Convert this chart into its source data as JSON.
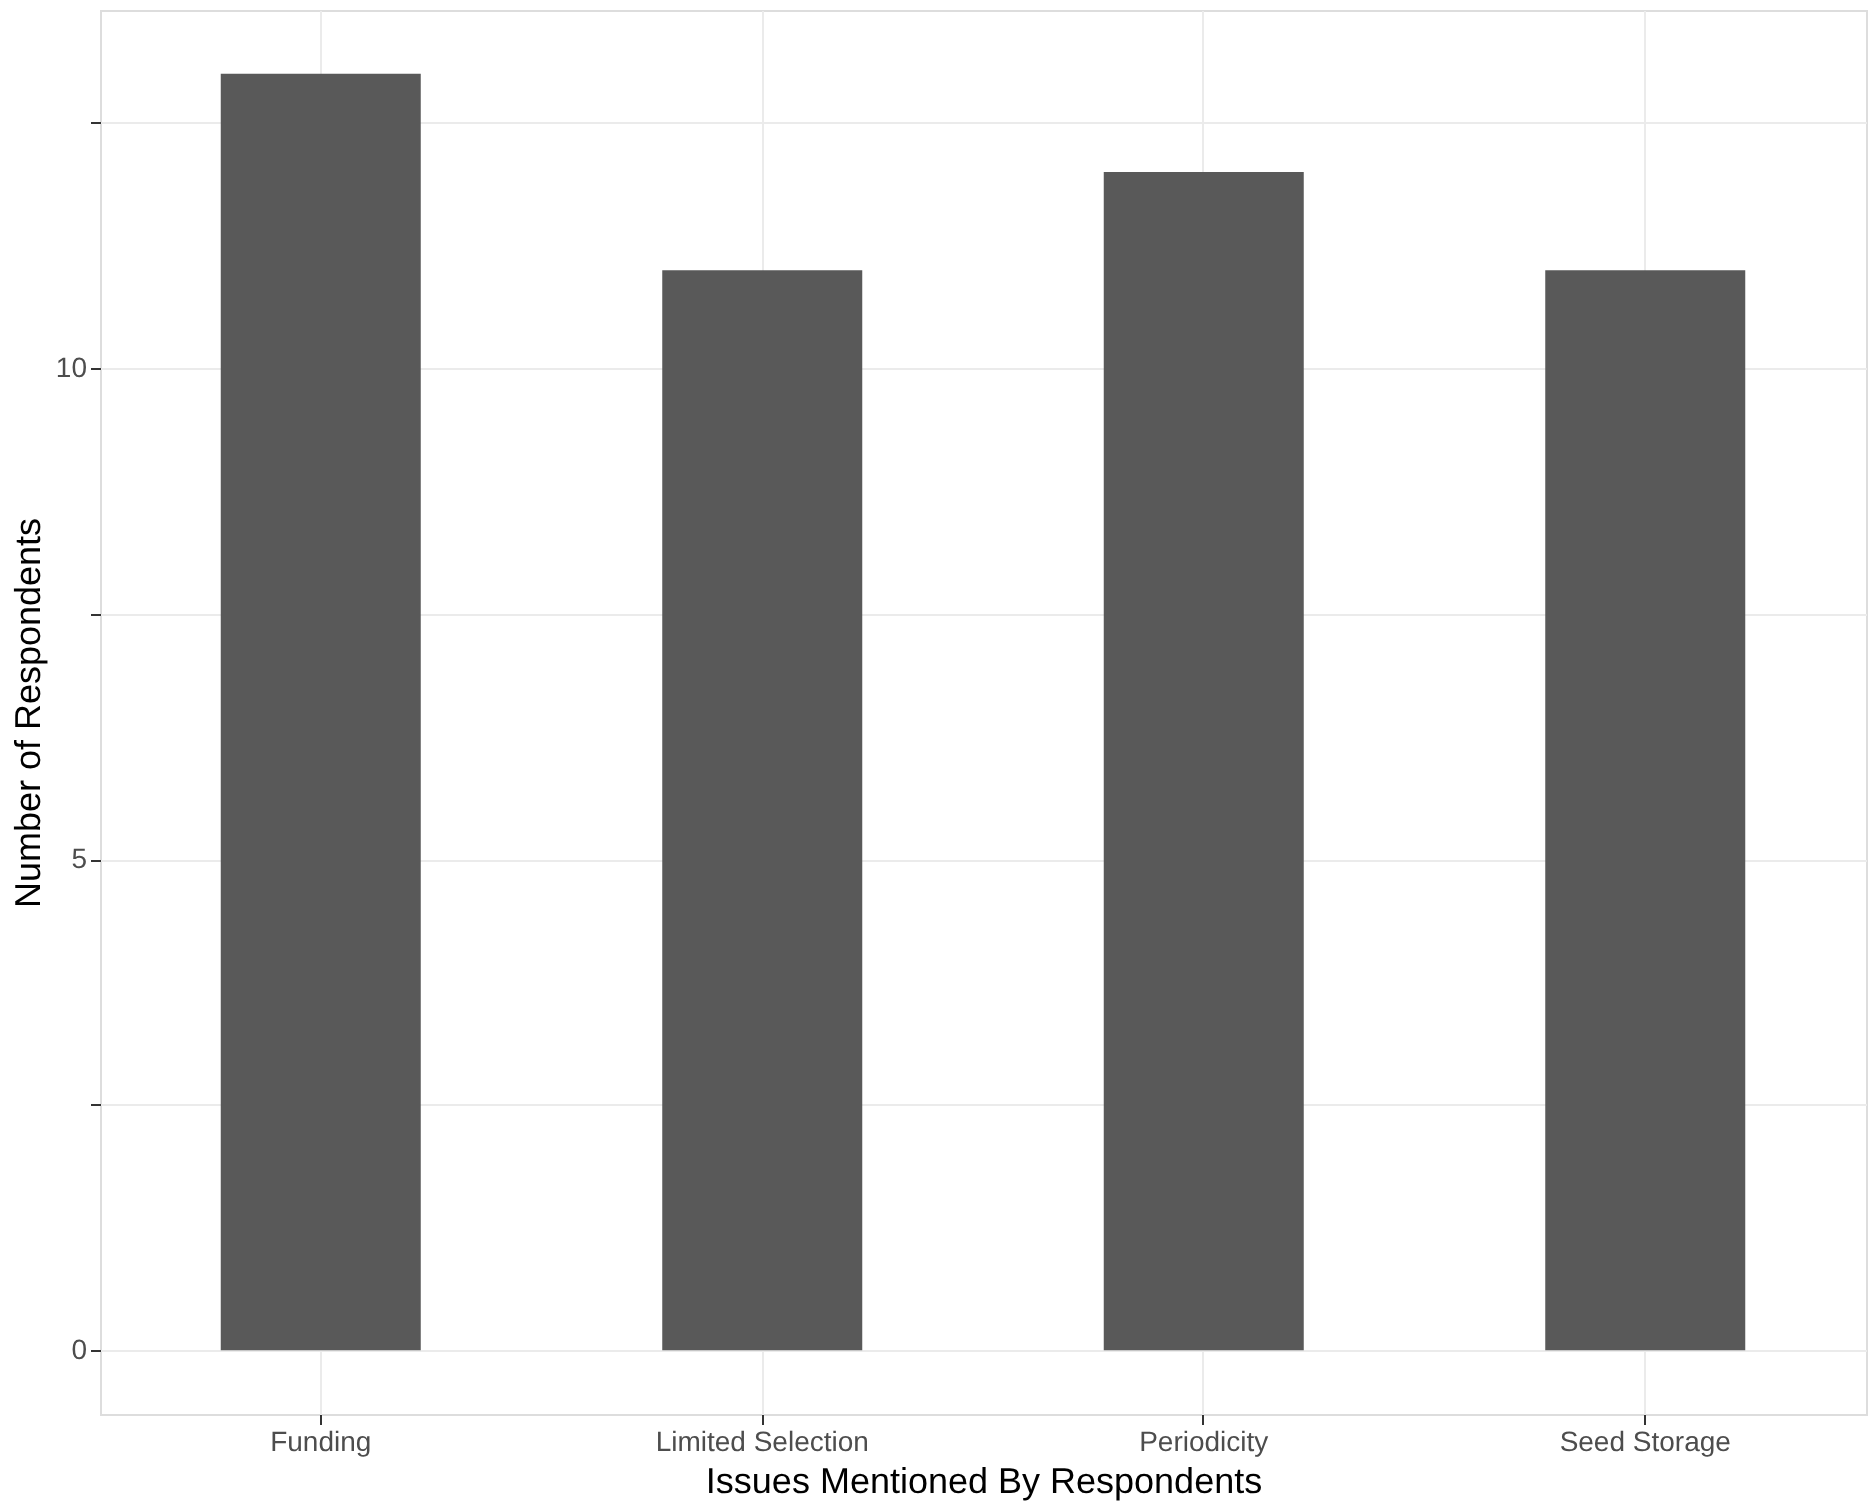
{
  "chart_data": {
    "type": "bar",
    "xlabel": "Issues Mentioned By Respondents",
    "ylabel": "Number of Respondents",
    "categories": [
      "Funding",
      "Limited Selection",
      "Periodicity",
      "Seed Storage"
    ],
    "values": [
      13,
      11,
      12,
      11
    ],
    "color": "#595959",
    "ylim": [
      -0.65,
      13.65
    ],
    "yticks": [
      0,
      {
        "value": 2.5,
        "label": null
      },
      5,
      {
        "value": 7.5,
        "label": null
      },
      10,
      {
        "value": 12.5,
        "label": null
      }
    ],
    "grid": true
  }
}
